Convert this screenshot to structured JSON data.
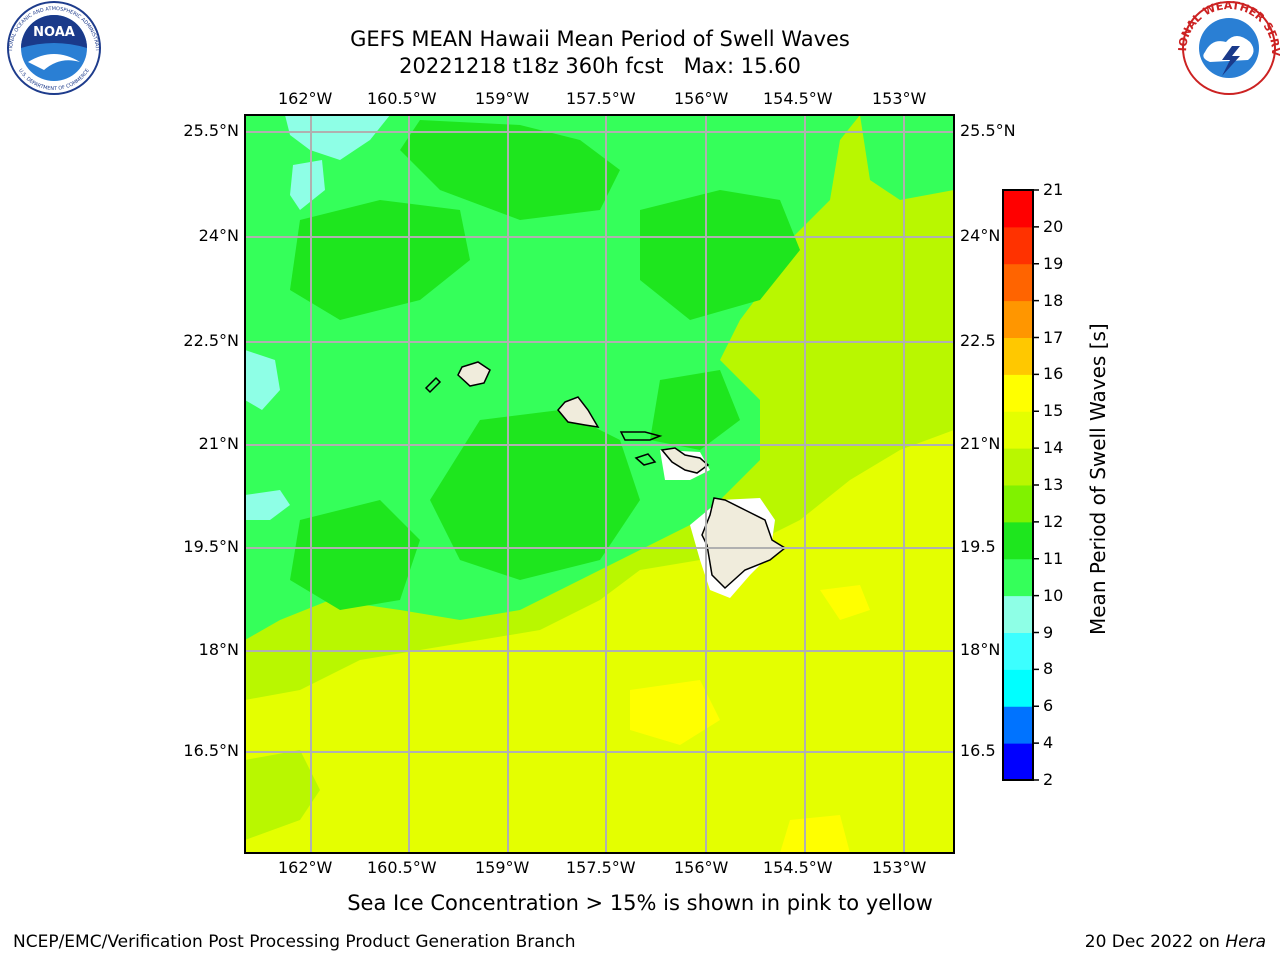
{
  "title_line1": "GEFS MEAN Hawaii Mean Period of Swell Waves",
  "title_line2": "20221218 t18z 360h fcst   Max: 15.60",
  "lon_labels": [
    "162°W",
    "160.5°W",
    "159°W",
    "157.5°W",
    "156°W",
    "154.5°W",
    "153°W"
  ],
  "lat_labels_left": [
    "25.5°N",
    "24°N",
    "22.5°N",
    "21°N",
    "19.5°N",
    "18°N",
    "16.5°N"
  ],
  "lat_labels_right": [
    "25.5°N",
    "24°N",
    "22.5",
    "21°N",
    "19.5",
    "18°N",
    "16.5"
  ],
  "colorbar": {
    "label": "Mean Period of Swell Waves [s]",
    "levels": [
      2,
      4,
      6,
      8,
      9,
      10,
      11,
      12,
      13,
      14,
      15,
      16,
      17,
      18,
      19,
      20,
      21
    ],
    "colors": [
      "#0000ff",
      "#0073ff",
      "#00ffff",
      "#3cffff",
      "#8effe6",
      "#35ff5a",
      "#1ee61e",
      "#80f200",
      "#b9f700",
      "#e4ff00",
      "#ffff00",
      "#ffc800",
      "#ff9600",
      "#ff6400",
      "#ff3200",
      "#ff0000"
    ]
  },
  "notice": "Sea Ice Concentration > 15% is shown in pink to yellow",
  "footer_left": "NCEP/EMC/Verification Post Processing Product Generation Branch",
  "footer_right_date": "20 Dec 2022 on ",
  "footer_right_host": "Hera",
  "logos": {
    "noaa": "NOAA",
    "noaa_ring_top": "NATIONAL OCEANIC AND ATMOSPHERIC ADMINISTRATION",
    "noaa_ring_bottom": "U.S. DEPARTMENT OF COMMERCE",
    "nws": "NATIONAL WEATHER SERVICE"
  }
}
